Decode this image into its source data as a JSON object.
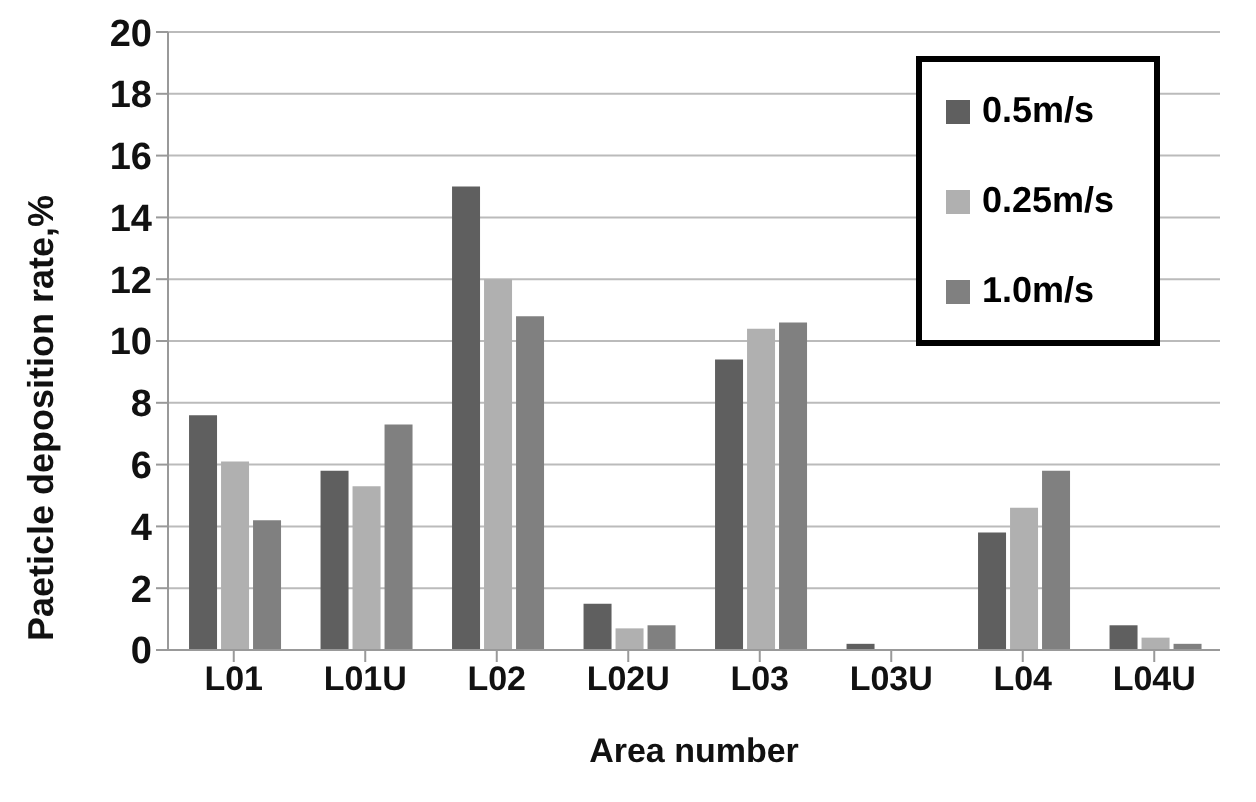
{
  "chart_data": {
    "type": "bar",
    "xlabel": "Area number",
    "ylabel": "Paeticle deposition rate,%",
    "categories": [
      "L01",
      "L01U",
      "L02",
      "L02U",
      "L03",
      "L03U",
      "L04",
      "L04U"
    ],
    "series": [
      {
        "name": "0.5m/s",
        "color": "#5f5f5f",
        "values": [
          7.6,
          5.8,
          15.0,
          1.5,
          9.4,
          0.2,
          3.8,
          0.8
        ]
      },
      {
        "name": "0.25m/s",
        "color": "#b0b0b0",
        "values": [
          6.1,
          5.3,
          12.0,
          0.7,
          10.4,
          0,
          4.6,
          0.4
        ]
      },
      {
        "name": "1.0m/s",
        "color": "#808080",
        "values": [
          4.2,
          7.3,
          10.8,
          0.8,
          10.6,
          0,
          5.8,
          0.2
        ]
      }
    ],
    "ylim": [
      0,
      20
    ],
    "yticks": [
      0,
      2,
      4,
      6,
      8,
      10,
      12,
      14,
      16,
      18,
      20
    ],
    "grid": "y",
    "legend": "top right"
  }
}
